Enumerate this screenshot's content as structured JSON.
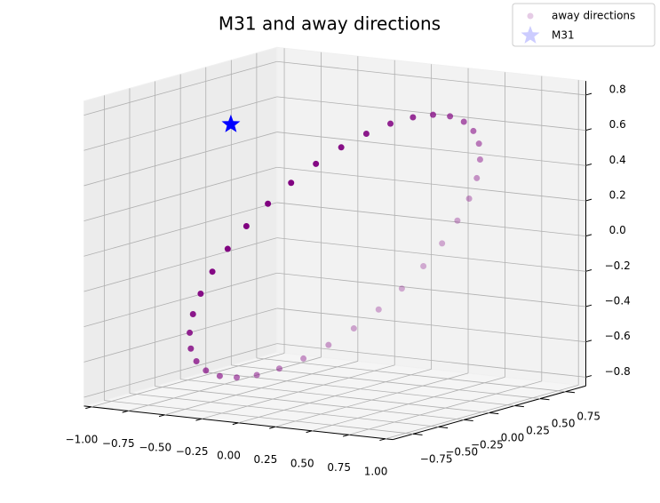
{
  "chart_data": {
    "type": "scatter3d",
    "title": "M31 and away directions",
    "series": [
      {
        "name": "away directions",
        "color": "purple",
        "marker": "circle",
        "x": [
          0.15,
          0.045,
          -0.062,
          -0.167,
          -0.266,
          -0.358,
          -0.439,
          -0.506,
          -0.558,
          -0.593,
          -0.61,
          -0.608,
          -0.589,
          -0.55,
          -0.496,
          -0.427,
          -0.344,
          -0.251,
          -0.15,
          -0.045,
          0.062,
          0.167,
          0.266,
          0.358,
          0.439,
          0.506,
          0.558,
          0.593,
          0.61,
          0.608,
          0.589,
          0.55,
          0.496,
          0.427,
          0.344,
          0.251
        ],
        "y": [
          0.989,
          0.99,
          0.961,
          0.901,
          0.816,
          0.705,
          0.573,
          0.423,
          0.261,
          0.09,
          -0.083,
          -0.253,
          -0.417,
          -0.567,
          -0.7,
          -0.811,
          -0.899,
          -0.958,
          -0.989,
          -0.99,
          -0.961,
          -0.901,
          -0.816,
          -0.705,
          -0.573,
          -0.423,
          -0.261,
          -0.09,
          0.083,
          0.253,
          0.417,
          0.567,
          0.7,
          0.811,
          0.899,
          0.958
        ],
        "z": [
          0,
          -0.139,
          -0.273,
          -0.4,
          -0.514,
          -0.612,
          -0.692,
          -0.751,
          -0.787,
          -0.799,
          -0.787,
          -0.751,
          -0.692,
          -0.612,
          -0.514,
          -0.4,
          -0.273,
          -0.139,
          0,
          0.139,
          0.273,
          0.4,
          0.514,
          0.612,
          0.692,
          0.751,
          0.787,
          0.799,
          0.787,
          0.751,
          0.692,
          0.612,
          0.514,
          0.4,
          0.273,
          0.139
        ]
      },
      {
        "name": "M31",
        "color": "blue",
        "marker": "star",
        "x": [
          -0.79
        ],
        "y": [
          0.12
        ],
        "z": [
          0.6
        ]
      }
    ],
    "xlim": [
      -1.05,
      1.05
    ],
    "ylim": [
      -0.95,
      0.95
    ],
    "zlim": [
      -0.85,
      0.88
    ],
    "xticks": [
      {
        "value": -1,
        "label": "−1.00"
      },
      {
        "value": -0.75,
        "label": "−0.75"
      },
      {
        "value": -0.5,
        "label": "−0.50"
      },
      {
        "value": -0.25,
        "label": "−0.25"
      },
      {
        "value": 0,
        "label": "0.00"
      },
      0.25,
      {
        "value": 0.5,
        "label": "0.50"
      },
      0.75,
      {
        "value": 1,
        "label": "1.00"
      }
    ],
    "yticks": [
      {
        "value": -0.75,
        "label": "−0.75"
      },
      {
        "value": -0.5,
        "label": "−0.50"
      },
      {
        "value": -0.25,
        "label": "−0.25"
      },
      {
        "value": 0,
        "label": "0.00"
      },
      0.25,
      {
        "value": 0.5,
        "label": "0.50"
      },
      0.75
    ],
    "zticks": [
      {
        "value": -0.8,
        "label": "−0.8"
      },
      {
        "value": -0.6,
        "label": "−0.6"
      },
      {
        "value": -0.4,
        "label": "−0.4"
      },
      {
        "value": -0.2,
        "label": "−0.2"
      },
      {
        "value": 0,
        "label": "0.0"
      },
      0.2,
      0.4,
      0.6,
      0.8
    ],
    "grid": true,
    "legend": "upper right"
  }
}
